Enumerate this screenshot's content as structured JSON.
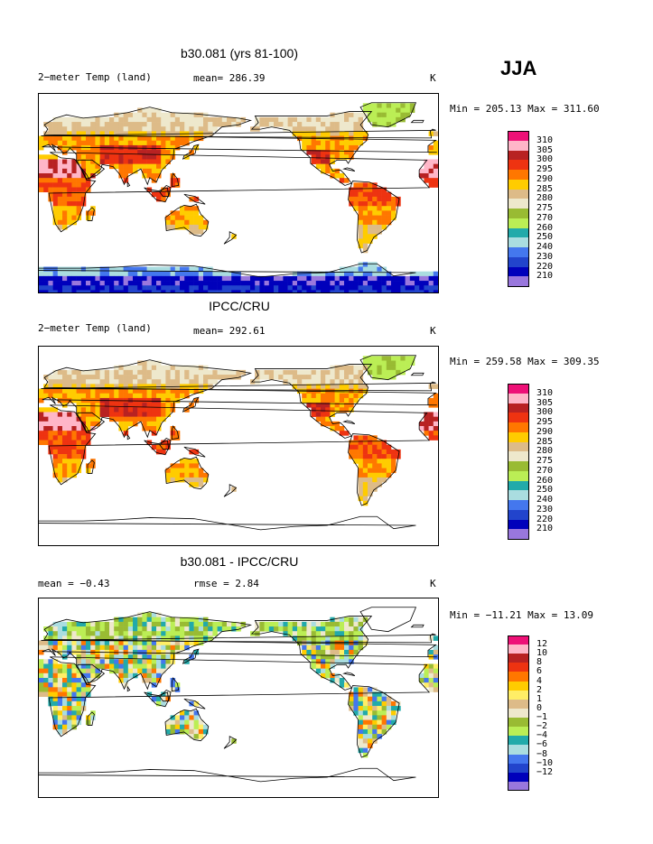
{
  "season": "JJA",
  "panels": [
    {
      "id": "model",
      "title": "b30.081 (yrs 81-100)",
      "left_label": "2−meter Temp (land)",
      "mid_label": "mean= 286.39",
      "units": "K",
      "minmax": "Min = 205.13 Max = 311.60",
      "legend_labels": [
        "310",
        "305",
        "300",
        "295",
        "290",
        "285",
        "280",
        "275",
        "270",
        "260",
        "250",
        "240",
        "230",
        "220",
        "210"
      ],
      "antarctica_fill": true
    },
    {
      "id": "obs",
      "title": "IPCC/CRU",
      "left_label": "2−meter Temp (land)",
      "mid_label": "mean= 292.61",
      "units": "K",
      "minmax": "Min = 259.58 Max = 309.35",
      "legend_labels": [
        "310",
        "305",
        "300",
        "295",
        "290",
        "285",
        "280",
        "275",
        "270",
        "260",
        "250",
        "240",
        "230",
        "220",
        "210"
      ],
      "antarctica_fill": false
    },
    {
      "id": "diff",
      "title": "b30.081 - IPCC/CRU",
      "left_label": "mean =   −0.43",
      "mid_label": "rmse =    2.84",
      "units": "K",
      "minmax": "Min = −11.21 Max =  13.09",
      "legend_labels": [
        "12",
        "10",
        "8",
        "6",
        "4",
        "2",
        "1",
        "0",
        "−1",
        "−2",
        "−4",
        "−6",
        "−8",
        "−10",
        "−12"
      ],
      "antarctica_fill": false
    }
  ],
  "colors": {
    "palette": [
      "#ee1177",
      "#ffb6c8",
      "#b82222",
      "#ee3311",
      "#ff7700",
      "#ffcc00",
      "#ffee66",
      "#ddbb88",
      "#eee8cc",
      "#99bb33",
      "#bbee55",
      "#22aaaa",
      "#aadde0",
      "#4477ee",
      "#2244cc",
      "#0000bb",
      "#9977dd"
    ],
    "temp_legend": [
      "#ee1177",
      "#ffb6c8",
      "#b82222",
      "#ee3311",
      "#ff7700",
      "#ffcc00",
      "#ddbb88",
      "#eee8cc",
      "#99bb33",
      "#bbee55",
      "#22aaaa",
      "#aadde0",
      "#4477ee",
      "#2244cc",
      "#0000bb",
      "#9977dd"
    ],
    "diff_legend": [
      "#ee1177",
      "#ffb6c8",
      "#b82222",
      "#ee3311",
      "#ff7700",
      "#ffcc00",
      "#ffee66",
      "#ddbb88",
      "#eee8cc",
      "#99bb33",
      "#bbee55",
      "#22aaaa",
      "#aadde0",
      "#4477ee",
      "#2244cc",
      "#0000bb",
      "#9977dd"
    ]
  }
}
